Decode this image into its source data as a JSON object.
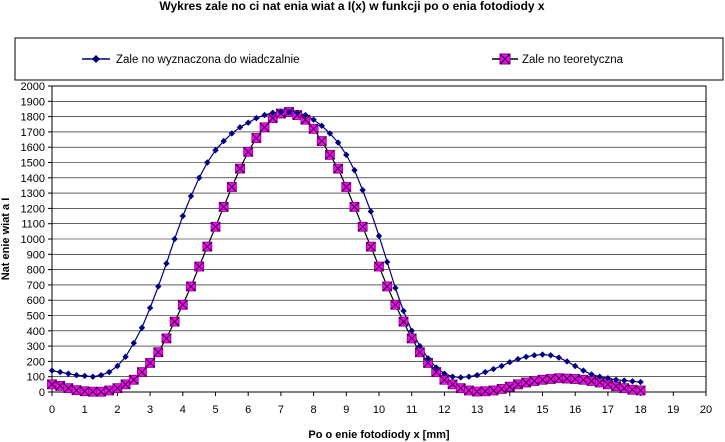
{
  "chart_data": {
    "type": "line",
    "title": "Wykres zale  no ci nat    enia   wiat a I(x) w funkcji po o  enia fotodiody x",
    "xlabel": "Po o  enie fotodiody x [mm]",
    "ylabel": "Nat   enie  wiat a I",
    "xlim": [
      0,
      20
    ],
    "ylim": [
      0,
      2000
    ],
    "xticks": [
      "0",
      "1",
      "2",
      "3",
      "4",
      "5",
      "6",
      "7",
      "8",
      "9",
      "10",
      "11",
      "12",
      "13",
      "14",
      "15",
      "16",
      "17",
      "18",
      "19",
      "20"
    ],
    "yticks": [
      "0",
      "100",
      "200",
      "300",
      "400",
      "500",
      "600",
      "700",
      "800",
      "900",
      "1000",
      "1100",
      "1200",
      "1300",
      "1400",
      "1500",
      "1600",
      "1700",
      "1800",
      "1900",
      "2000"
    ],
    "grid": "horizontal",
    "legend_position": "top",
    "series": [
      {
        "name": "Zale  no     wyznaczona do  wiadczalnie",
        "color": "#000080",
        "marker": "diamond",
        "x": [
          0,
          0.25,
          0.5,
          0.75,
          1,
          1.25,
          1.5,
          1.75,
          2,
          2.25,
          2.5,
          2.75,
          3,
          3.25,
          3.5,
          3.75,
          4,
          4.25,
          4.5,
          4.75,
          5,
          5.25,
          5.5,
          5.75,
          6,
          6.25,
          6.5,
          6.75,
          7,
          7.25,
          7.5,
          7.75,
          8,
          8.25,
          8.5,
          8.75,
          9,
          9.25,
          9.5,
          9.75,
          10,
          10.25,
          10.5,
          10.75,
          11,
          11.25,
          11.5,
          11.75,
          12,
          12.25,
          12.5,
          12.75,
          13,
          13.25,
          13.5,
          13.75,
          14,
          14.25,
          14.5,
          14.75,
          15,
          15.25,
          15.5,
          15.75,
          16,
          16.25,
          16.5,
          16.75,
          17,
          17.25,
          17.5,
          17.75,
          18
        ],
        "values": [
          140,
          130,
          120,
          110,
          105,
          100,
          110,
          130,
          170,
          230,
          320,
          420,
          550,
          690,
          840,
          1000,
          1150,
          1280,
          1400,
          1500,
          1580,
          1640,
          1690,
          1730,
          1760,
          1790,
          1810,
          1825,
          1830,
          1830,
          1825,
          1810,
          1780,
          1740,
          1690,
          1630,
          1550,
          1450,
          1320,
          1180,
          1020,
          850,
          680,
          530,
          400,
          300,
          220,
          160,
          120,
          100,
          95,
          100,
          110,
          130,
          150,
          170,
          195,
          215,
          230,
          240,
          245,
          240,
          225,
          200,
          170,
          140,
          115,
          100,
          90,
          80,
          75,
          70,
          65
        ]
      },
      {
        "name": "Zale  no     teoretyczna",
        "color": "#ff00ff",
        "marker": "square-x",
        "x": [
          0,
          0.25,
          0.5,
          0.75,
          1,
          1.25,
          1.5,
          1.75,
          2,
          2.25,
          2.5,
          2.75,
          3,
          3.25,
          3.5,
          3.75,
          4,
          4.25,
          4.5,
          4.75,
          5,
          5.25,
          5.5,
          5.75,
          6,
          6.25,
          6.5,
          6.75,
          7,
          7.25,
          7.5,
          7.75,
          8,
          8.25,
          8.5,
          8.75,
          9,
          9.25,
          9.5,
          9.75,
          10,
          10.25,
          10.5,
          10.75,
          11,
          11.25,
          11.5,
          11.75,
          12,
          12.25,
          12.5,
          12.75,
          13,
          13.25,
          13.5,
          13.75,
          14,
          14.25,
          14.5,
          14.75,
          15,
          15.25,
          15.5,
          15.75,
          16,
          16.25,
          16.5,
          16.75,
          17,
          17.25,
          17.5,
          17.75,
          18
        ],
        "values": [
          50,
          40,
          25,
          12,
          5,
          2,
          2,
          10,
          25,
          50,
          80,
          130,
          190,
          260,
          350,
          460,
          570,
          690,
          820,
          950,
          1080,
          1210,
          1340,
          1460,
          1570,
          1660,
          1730,
          1790,
          1820,
          1830,
          1810,
          1780,
          1720,
          1640,
          1550,
          1460,
          1340,
          1210,
          1080,
          950,
          820,
          690,
          570,
          460,
          350,
          260,
          190,
          130,
          80,
          50,
          25,
          10,
          3,
          5,
          10,
          20,
          35,
          50,
          62,
          72,
          80,
          85,
          90,
          88,
          85,
          80,
          72,
          62,
          50,
          38,
          25,
          15,
          10
        ]
      }
    ]
  }
}
